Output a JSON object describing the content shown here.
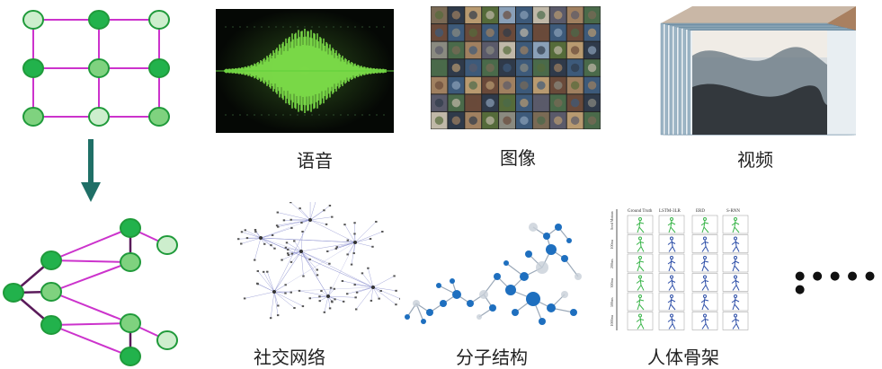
{
  "colors": {
    "node_light": "#cdeecd",
    "node_dark": "#22b24c",
    "node_mid": "#7fd27f",
    "node_stroke": "#1f9a3a",
    "edge_regular": "#cc33cc",
    "edge_irregular": "#cc33cc",
    "edge_dark": "#5a1a5a",
    "arrow": "#1f6f66",
    "audio_bg": "#0a0f0a",
    "audio_wave": "#6fdc3a",
    "video_accent": "#4a8fb0",
    "molecule": "#1e6fbf",
    "social_edge": "#7b80c8",
    "skeleton_fig": "#2e4fa8",
    "skeleton_gt": "#3ab54a"
  },
  "captions": {
    "audio": "语音",
    "image": "图像",
    "video": "视频",
    "social": "社交网络",
    "molecule": "分子结构",
    "skeleton": "人体骨架"
  },
  "ellipsis": "● ● ● ● ● ●",
  "skeleton_headers": [
    "Ground Truth",
    "LSTM-3LR",
    "ERD",
    "S-RNN"
  ],
  "skeleton_row_labels": [
    "Seed Motion",
    "100ms",
    "200ms",
    "300ms",
    "500ms",
    "1000ms"
  ],
  "icons": {
    "arrow": "down-arrow-icon",
    "audio": "waveform-icon",
    "image": "image-grid-icon",
    "video": "video-stack-icon",
    "social": "network-icon",
    "molecule": "molecule-icon",
    "skeleton": "skeleton-icon"
  }
}
